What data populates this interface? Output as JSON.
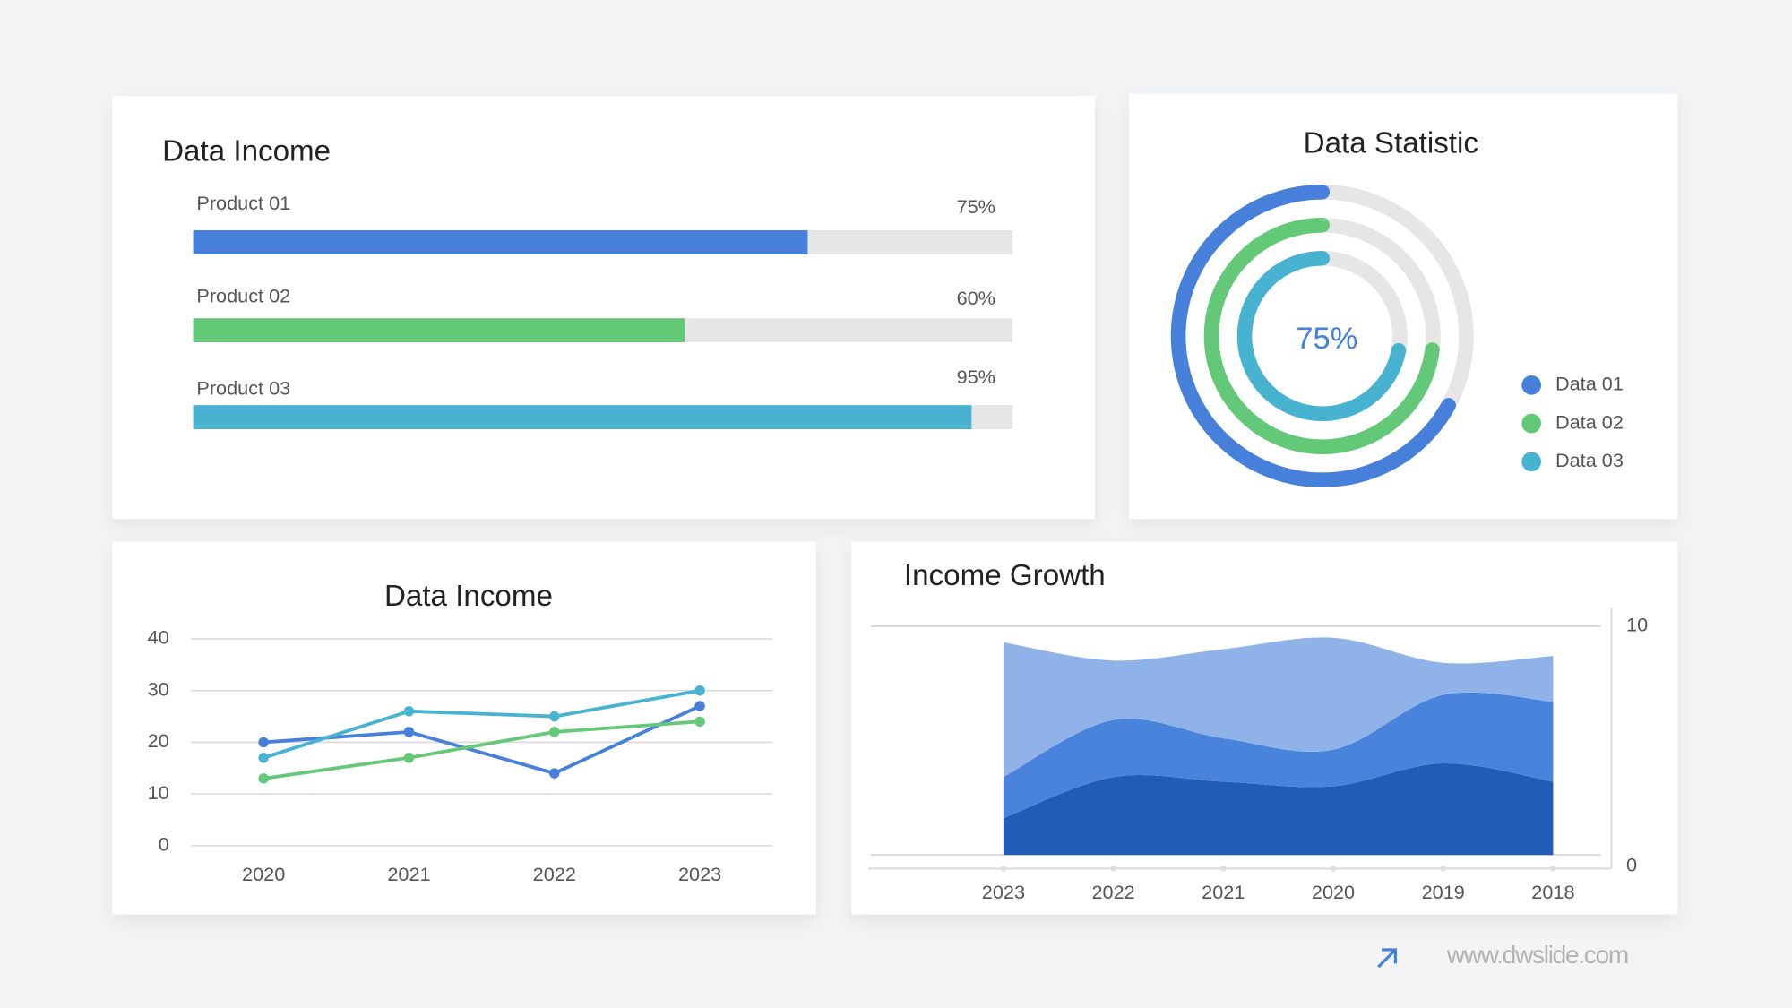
{
  "chart_data": [
    {
      "type": "progress",
      "title": "Data Income",
      "categories": [
        "Product 01",
        "Product 02",
        "Product 03"
      ],
      "values": [
        75,
        60,
        95
      ],
      "value_labels": [
        "75%",
        "60%",
        "95%"
      ],
      "colors": [
        "#4680db",
        "#63c979",
        "#47b3d1"
      ],
      "track_color": "#e6e6e6",
      "xlim": [
        0,
        100
      ]
    },
    {
      "type": "radial",
      "title": "Data Statistic",
      "center_label": "75%",
      "track_color": "#e6e6e6",
      "legend": "right",
      "series": [
        {
          "name": "Data 01",
          "color": "#4680db",
          "value": 67
        },
        {
          "name": "Data 02",
          "color": "#63c979",
          "value": 73
        },
        {
          "name": "Data 03",
          "color": "#47b3d1",
          "value": 72
        }
      ]
    },
    {
      "type": "line",
      "title": "Data Income",
      "categories": [
        "2020",
        "2021",
        "2022",
        "2023"
      ],
      "ylim": [
        0,
        40
      ],
      "yticks": [
        0,
        10,
        20,
        30,
        40
      ],
      "grid": true,
      "series": [
        {
          "color": "#4680db",
          "values": [
            20,
            22,
            14,
            27
          ]
        },
        {
          "color": "#63c979",
          "values": [
            13,
            17,
            22,
            24
          ]
        },
        {
          "color": "#47b3d1",
          "values": [
            17,
            26,
            25,
            30
          ]
        }
      ]
    },
    {
      "type": "area",
      "title": "Income Growth",
      "stacked": true,
      "y_axis_side": "right",
      "categories": [
        "2023",
        "2022",
        "2021",
        "2020",
        "2019",
        "2018"
      ],
      "ylim": [
        0,
        10
      ],
      "yticks": [
        0,
        10
      ],
      "grid": true,
      "series": [
        {
          "color": "#215cb6",
          "values": [
            1.6,
            3.4,
            3.2,
            3.0,
            4.0,
            3.2
          ]
        },
        {
          "color": "#4a83db",
          "values": [
            1.8,
            2.5,
            1.9,
            1.6,
            3.0,
            3.5
          ]
        },
        {
          "color": "#8fb2e8",
          "values": [
            5.9,
            2.6,
            3.9,
            4.9,
            1.4,
            2.0
          ]
        }
      ]
    }
  ],
  "footer": {
    "url": "www.dwslide.com"
  }
}
